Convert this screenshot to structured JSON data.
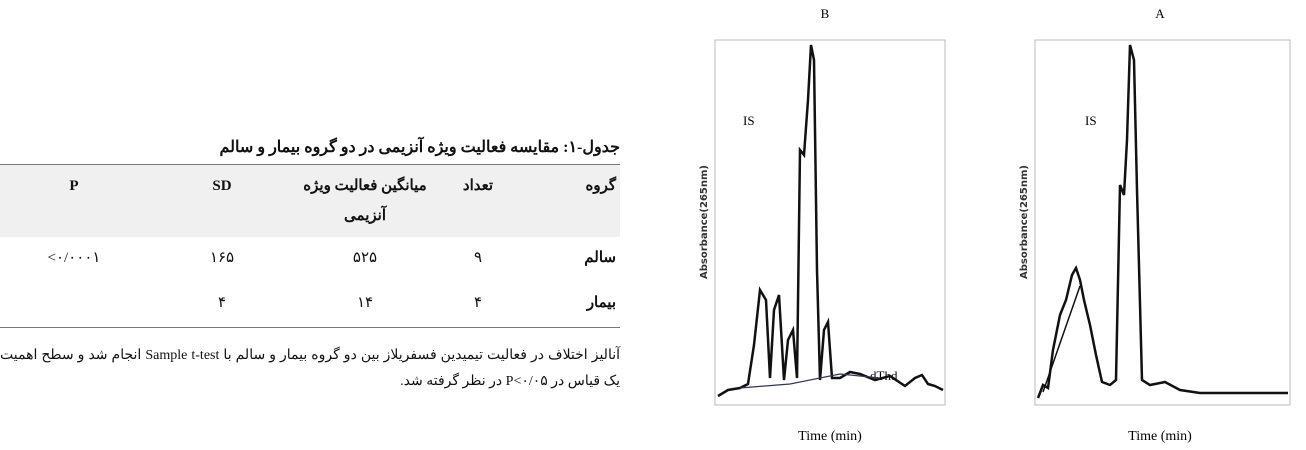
{
  "table": {
    "title": "جدول-۱: مقایسه فعالیت ویژه آنزیمی در دو گروه بیمار و سالم",
    "header": [
      "گروه",
      "تعداد",
      "میانگین فعالیت ویژه آنزیمی",
      "SD",
      "P"
    ],
    "rows": [
      [
        "سالم",
        "۹",
        "۵۲۵",
        "۱۶۵",
        "<۰/۰۰۰۱"
      ],
      [
        "بیمار",
        "۴",
        "۱۴",
        "۴"
      ]
    ]
  },
  "caption": "آنالیز اختلاف در فعالیت تیمیدین فسفریلاز بین دو گروه بیمار و سالم با Sample  t-test انجام شد و سطح اهمیت یک قیاس در P<۰/۰۵ در نظر گرفته شد.",
  "figures": [
    {
      "label": "B",
      "y_axis": "Absorbance(265nm)",
      "x_axis": "Time (min)",
      "annotations": [
        "IS",
        "dThd"
      ]
    },
    {
      "label": "A",
      "y_axis": "Absorbance(265nm)",
      "x_axis": "Time (min)",
      "annotations": [
        "IS"
      ]
    }
  ]
}
